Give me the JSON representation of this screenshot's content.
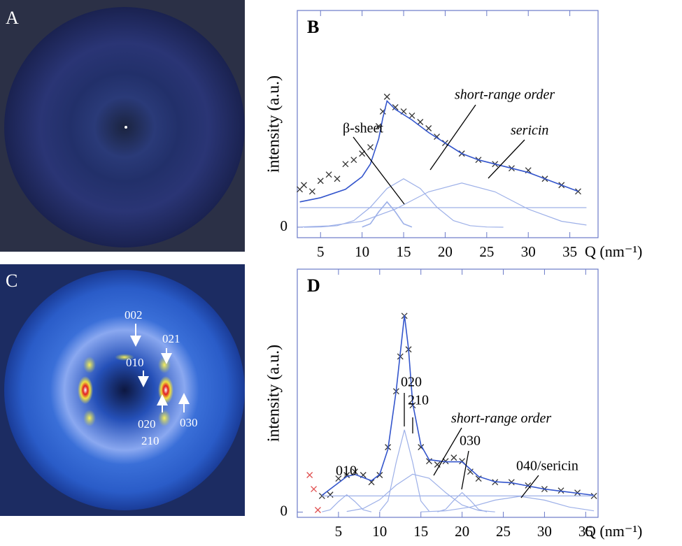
{
  "images": [
    {
      "label": "A"
    },
    {
      "label": "C",
      "annotations": [
        "002",
        "021",
        "010",
        "020",
        "210",
        "030"
      ]
    }
  ],
  "chart_data": [
    {
      "type": "scatter",
      "panel_label": "B",
      "x_label": "Q (nm⁻¹)",
      "y_label": "intensity (a.u.)",
      "xlim": [
        2.2,
        38.4
      ],
      "ylim": [
        -0.5,
        10.3
      ],
      "xticks": [
        5,
        10,
        15,
        20,
        25,
        30,
        35
      ],
      "yticks": [
        0
      ],
      "series": [
        {
          "style": "markers",
          "color": "#333333",
          "x": [
            2.5,
            3,
            4,
            5,
            6,
            7,
            8,
            9,
            10,
            11,
            12,
            12.5,
            13,
            14,
            15,
            16,
            17,
            18,
            19,
            20,
            22,
            24,
            26,
            28,
            30,
            32,
            34,
            36
          ],
          "values": [
            1.8,
            2.0,
            1.7,
            2.2,
            2.5,
            2.3,
            3.0,
            3.2,
            3.5,
            3.8,
            4.8,
            5.5,
            6.2,
            5.7,
            5.5,
            5.3,
            5.0,
            4.7,
            4.3,
            4.0,
            3.5,
            3.2,
            3.0,
            2.8,
            2.7,
            2.3,
            2.0,
            1.7
          ]
        },
        {
          "style": "line",
          "color": "#3355cc",
          "x": [
            2.5,
            5,
            8,
            10,
            11,
            12,
            12.5,
            13,
            14,
            16,
            18,
            20,
            22,
            24,
            26,
            28,
            30,
            32,
            34,
            36
          ],
          "values": [
            1.2,
            1.4,
            1.8,
            2.4,
            3.0,
            4.2,
            5.2,
            6.0,
            5.6,
            5.1,
            4.5,
            4.0,
            3.5,
            3.2,
            3.0,
            2.8,
            2.6,
            2.3,
            2.0,
            1.7
          ]
        },
        {
          "style": "line",
          "color": "#9db0e8",
          "x": [
            10,
            11,
            12,
            13,
            14,
            15,
            16
          ],
          "values": [
            0.01,
            0.16,
            0.73,
            1.2,
            0.73,
            0.16,
            0.01
          ]
        },
        {
          "style": "line",
          "color": "#9db0e8",
          "x": [
            3,
            5,
            7,
            9,
            11,
            13,
            15,
            17,
            19,
            21,
            23,
            25,
            27
          ],
          "values": [
            0,
            0.01,
            0.07,
            0.31,
            0.95,
            1.84,
            2.3,
            1.84,
            0.95,
            0.31,
            0.07,
            0.01,
            0
          ]
        },
        {
          "style": "line",
          "color": "#9db0e8",
          "x": [
            2.5,
            6,
            10,
            14,
            18,
            22,
            26,
            30,
            34,
            37
          ],
          "values": [
            0.01,
            0.06,
            0.28,
            0.86,
            1.68,
            2.1,
            1.68,
            0.86,
            0.28,
            0.1
          ]
        },
        {
          "style": "line",
          "color": "#9db0e8",
          "x": [
            2.5,
            37
          ],
          "values": [
            0.93,
            0.93
          ]
        }
      ],
      "annotations": [
        {
          "text": "β-sheet",
          "italic": false
        },
        {
          "text": "short-range order",
          "italic": true
        },
        {
          "text": "sericin",
          "italic": true
        }
      ]
    },
    {
      "type": "scatter",
      "panel_label": "D",
      "x_label": "Q (nm⁻¹)",
      "y_label": "intensity (a.u.)",
      "xlim": [
        0,
        36.5
      ],
      "ylim": [
        -0.25,
        11.6
      ],
      "xticks": [
        5,
        10,
        15,
        20,
        25,
        30,
        35
      ],
      "yticks": [
        0
      ],
      "series": [
        {
          "style": "markers",
          "color": "#333333",
          "x": [
            3,
            4,
            5,
            6,
            7,
            8,
            9,
            10,
            11,
            12,
            12.5,
            13,
            13.5,
            14,
            15,
            16,
            17,
            18,
            19,
            20,
            21,
            22,
            24,
            26,
            28,
            30,
            32,
            34,
            36
          ],
          "values": [
            0.77,
            0.83,
            1.6,
            1.77,
            1.93,
            1.77,
            1.43,
            1.77,
            3.1,
            5.77,
            7.43,
            9.37,
            7.77,
            5.1,
            3.1,
            2.43,
            2.27,
            2.43,
            2.6,
            2.43,
            1.93,
            1.6,
            1.43,
            1.43,
            1.27,
            1.1,
            1.03,
            0.93,
            0.77
          ]
        },
        {
          "style": "markers",
          "color": "#e05050",
          "x": [
            1.5,
            2,
            2.5
          ],
          "values": [
            1.77,
            1.1,
            0.1
          ]
        },
        {
          "style": "line",
          "color": "#3355cc",
          "x": [
            3,
            5,
            6,
            7,
            9,
            10,
            11,
            12,
            12.5,
            13,
            13.5,
            14,
            15,
            16,
            18,
            20,
            22,
            24,
            26,
            28,
            30,
            32,
            34,
            36
          ],
          "values": [
            0.8,
            1.4,
            1.7,
            1.8,
            1.5,
            1.8,
            3.0,
            5.8,
            7.6,
            9.4,
            7.8,
            5.2,
            3.2,
            2.5,
            2.4,
            2.4,
            1.7,
            1.45,
            1.4,
            1.25,
            1.1,
            1.0,
            0.9,
            0.8
          ]
        },
        {
          "style": "line",
          "color": "#9db0e8",
          "x": [
            3,
            4,
            5,
            6,
            7,
            8,
            9
          ],
          "values": [
            0.01,
            0.11,
            0.5,
            0.83,
            0.5,
            0.11,
            0.01
          ]
        },
        {
          "style": "line",
          "color": "#9db0e8",
          "x": [
            10,
            11,
            12,
            13,
            14,
            15,
            16
          ],
          "values": [
            0.04,
            0.53,
            2.38,
            3.93,
            2.38,
            0.53,
            0.04
          ]
        },
        {
          "style": "line",
          "color": "#9db0e8",
          "x": [
            6,
            8,
            10,
            12,
            14,
            16,
            18,
            20,
            22,
            24
          ],
          "values": [
            0.03,
            0.17,
            0.59,
            1.29,
            1.81,
            1.62,
            0.93,
            0.34,
            0.08,
            0.01
          ]
        },
        {
          "style": "line",
          "color": "#9db0e8",
          "x": [
            17,
            18,
            19,
            20,
            21,
            22,
            23
          ],
          "values": [
            0.01,
            0.13,
            0.56,
            0.93,
            0.56,
            0.13,
            0.01
          ]
        },
        {
          "style": "line",
          "color": "#9db0e8",
          "x": [
            15,
            18,
            21,
            24,
            27,
            30,
            33,
            36
          ],
          "values": [
            0.01,
            0.06,
            0.24,
            0.57,
            0.75,
            0.57,
            0.24,
            0.06
          ]
        },
        {
          "style": "line",
          "color": "#9db0e8",
          "x": [
            3,
            36
          ],
          "values": [
            0.77,
            0.77
          ]
        }
      ],
      "annotations": [
        {
          "text": "020",
          "italic": false
        },
        {
          "text": "210",
          "italic": false
        },
        {
          "text": "010",
          "italic": false
        },
        {
          "text": "short-range order",
          "italic": true
        },
        {
          "text": "030",
          "italic": false
        },
        {
          "text": "040/sericin",
          "italic": false
        }
      ]
    }
  ]
}
